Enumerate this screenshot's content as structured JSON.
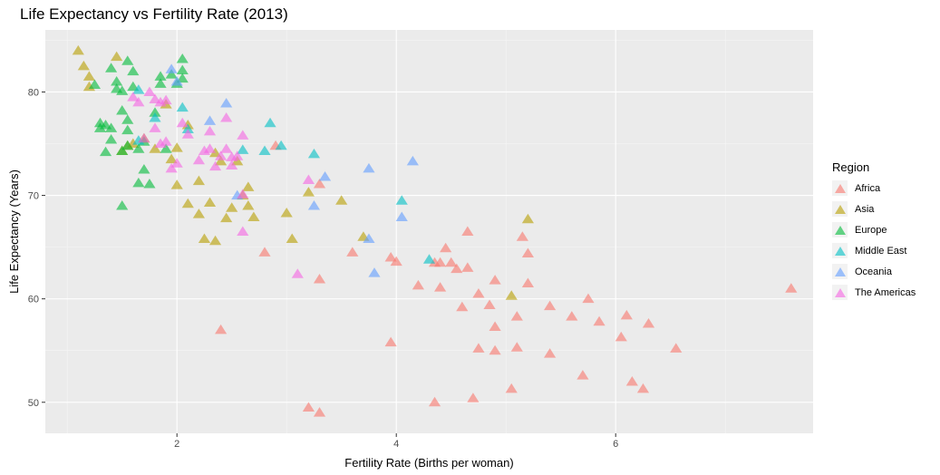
{
  "chart_data": {
    "type": "scatter",
    "title": "Life Expectancy vs Fertility Rate (2013)",
    "xlabel": "Fertility Rate (Births per woman)",
    "ylabel": "Life Expectancy (Years)",
    "xlim": [
      0.8,
      7.8
    ],
    "ylim": [
      47,
      86
    ],
    "xticks": [
      2,
      4,
      6
    ],
    "yticks": [
      50,
      60,
      70,
      80
    ],
    "grid": true,
    "legend": {
      "title": "Region",
      "position": "right"
    },
    "series": [
      {
        "name": "Africa",
        "color": "#F8766D",
        "points": [
          [
            2.4,
            57
          ],
          [
            2.8,
            64.5
          ],
          [
            2.9,
            74.8
          ],
          [
            3.2,
            49.5
          ],
          [
            3.3,
            49
          ],
          [
            3.3,
            61.9
          ],
          [
            3.3,
            71.1
          ],
          [
            3.6,
            64.5
          ],
          [
            3.95,
            64
          ],
          [
            3.95,
            55.8
          ],
          [
            4.0,
            63.6
          ],
          [
            4.2,
            61.3
          ],
          [
            4.35,
            50
          ],
          [
            4.35,
            63.5
          ],
          [
            4.4,
            61.1
          ],
          [
            4.4,
            63.5
          ],
          [
            4.45,
            64.9
          ],
          [
            4.5,
            63.5
          ],
          [
            4.55,
            62.9
          ],
          [
            4.6,
            59.2
          ],
          [
            4.65,
            63
          ],
          [
            4.65,
            66.5
          ],
          [
            4.7,
            50.4
          ],
          [
            4.75,
            60.5
          ],
          [
            4.75,
            55.2
          ],
          [
            4.85,
            59.4
          ],
          [
            4.9,
            55
          ],
          [
            4.9,
            57.3
          ],
          [
            4.9,
            61.8
          ],
          [
            5.05,
            51.3
          ],
          [
            5.1,
            58.3
          ],
          [
            5.1,
            55.3
          ],
          [
            5.15,
            66
          ],
          [
            5.2,
            61.5
          ],
          [
            5.2,
            64.4
          ],
          [
            5.4,
            54.7
          ],
          [
            5.4,
            59.3
          ],
          [
            5.6,
            58.3
          ],
          [
            5.7,
            52.6
          ],
          [
            5.75,
            60
          ],
          [
            5.85,
            57.8
          ],
          [
            6.05,
            56.3
          ],
          [
            6.1,
            58.4
          ],
          [
            6.15,
            52
          ],
          [
            6.25,
            51.3
          ],
          [
            6.3,
            57.6
          ],
          [
            6.55,
            55.2
          ],
          [
            7.6,
            61
          ]
        ]
      },
      {
        "name": "Asia",
        "color": "#B79F00",
        "points": [
          [
            1.1,
            84
          ],
          [
            1.15,
            82.5
          ],
          [
            1.2,
            80.5
          ],
          [
            1.2,
            81.5
          ],
          [
            1.45,
            83.4
          ],
          [
            1.5,
            74.3
          ],
          [
            1.55,
            74.8
          ],
          [
            1.6,
            75
          ],
          [
            1.8,
            74.5
          ],
          [
            1.95,
            73.5
          ],
          [
            2.0,
            74.6
          ],
          [
            2.0,
            71
          ],
          [
            2.1,
            69.2
          ],
          [
            2.2,
            68.2
          ],
          [
            2.2,
            71.4
          ],
          [
            2.25,
            65.8
          ],
          [
            2.3,
            69.3
          ],
          [
            2.35,
            65.6
          ],
          [
            2.35,
            74.1
          ],
          [
            2.4,
            73.3
          ],
          [
            2.45,
            67.8
          ],
          [
            2.5,
            68.8
          ],
          [
            2.55,
            73.3
          ],
          [
            2.6,
            70
          ],
          [
            2.65,
            70.8
          ],
          [
            2.65,
            69
          ],
          [
            2.7,
            67.9
          ],
          [
            3.0,
            68.3
          ],
          [
            3.05,
            65.8
          ],
          [
            3.2,
            70.3
          ],
          [
            3.5,
            69.5
          ],
          [
            3.7,
            66
          ],
          [
            5.05,
            60.3
          ],
          [
            5.2,
            67.7
          ],
          [
            1.9,
            78.8
          ],
          [
            2.1,
            76.8
          ],
          [
            1.7,
            75.5
          ]
        ]
      },
      {
        "name": "Europe",
        "color": "#00BA38",
        "points": [
          [
            1.25,
            80.7
          ],
          [
            1.3,
            76.5
          ],
          [
            1.3,
            77
          ],
          [
            1.35,
            76.8
          ],
          [
            1.4,
            75.4
          ],
          [
            1.4,
            82.3
          ],
          [
            1.45,
            80.3
          ],
          [
            1.45,
            81
          ],
          [
            1.5,
            69
          ],
          [
            1.5,
            74.3
          ],
          [
            1.5,
            78.2
          ],
          [
            1.5,
            80.1
          ],
          [
            1.55,
            74.8
          ],
          [
            1.55,
            76.3
          ],
          [
            1.55,
            77.3
          ],
          [
            1.55,
            83
          ],
          [
            1.6,
            80.5
          ],
          [
            1.6,
            82
          ],
          [
            1.65,
            74.5
          ],
          [
            1.65,
            71.2
          ],
          [
            1.7,
            72.5
          ],
          [
            1.7,
            75.2
          ],
          [
            1.75,
            71.1
          ],
          [
            1.8,
            78
          ],
          [
            1.85,
            80.8
          ],
          [
            1.85,
            81.5
          ],
          [
            1.9,
            74.5
          ],
          [
            1.95,
            81.7
          ],
          [
            2.0,
            80.8
          ],
          [
            2.05,
            81.3
          ],
          [
            2.05,
            82.1
          ],
          [
            2.05,
            83.2
          ],
          [
            1.4,
            76.5
          ],
          [
            1.35,
            74.2
          ]
        ]
      },
      {
        "name": "Middle East",
        "color": "#00BFC4",
        "points": [
          [
            1.65,
            80.2
          ],
          [
            2.05,
            78.5
          ],
          [
            2.1,
            76.4
          ],
          [
            2.6,
            74.4
          ],
          [
            2.8,
            74.3
          ],
          [
            2.85,
            77
          ],
          [
            2.95,
            74.8
          ],
          [
            3.25,
            74
          ],
          [
            4.05,
            69.5
          ],
          [
            4.3,
            63.8
          ],
          [
            1.8,
            77.5
          ],
          [
            1.65,
            75.3
          ]
        ]
      },
      {
        "name": "Oceania",
        "color": "#619CFF",
        "points": [
          [
            1.95,
            82.2
          ],
          [
            2.0,
            81
          ],
          [
            2.3,
            77.2
          ],
          [
            2.45,
            78.9
          ],
          [
            2.55,
            70
          ],
          [
            3.25,
            69
          ],
          [
            3.35,
            71.8
          ],
          [
            3.75,
            65.8
          ],
          [
            3.75,
            72.6
          ],
          [
            3.8,
            62.5
          ],
          [
            4.05,
            67.9
          ],
          [
            4.15,
            73.3
          ]
        ]
      },
      {
        "name": "The Americas",
        "color": "#F564E3",
        "points": [
          [
            1.6,
            79.5
          ],
          [
            1.65,
            79
          ],
          [
            1.7,
            75.5
          ],
          [
            1.75,
            80
          ],
          [
            1.8,
            76.5
          ],
          [
            1.8,
            79.3
          ],
          [
            1.85,
            79
          ],
          [
            1.85,
            75
          ],
          [
            1.9,
            75.2
          ],
          [
            1.95,
            72.6
          ],
          [
            2.0,
            73.1
          ],
          [
            2.05,
            77
          ],
          [
            2.1,
            75.9
          ],
          [
            2.2,
            73.4
          ],
          [
            2.25,
            74.3
          ],
          [
            2.3,
            74.5
          ],
          [
            2.3,
            76.2
          ],
          [
            2.35,
            72.8
          ],
          [
            2.4,
            73.8
          ],
          [
            2.45,
            74.5
          ],
          [
            2.45,
            77.5
          ],
          [
            2.5,
            72.9
          ],
          [
            2.5,
            73.7
          ],
          [
            2.55,
            73.8
          ],
          [
            2.6,
            75.8
          ],
          [
            2.6,
            66.5
          ],
          [
            2.6,
            70.1
          ],
          [
            3.1,
            62.4
          ],
          [
            3.2,
            71.5
          ],
          [
            1.9,
            79.2
          ]
        ]
      }
    ]
  }
}
